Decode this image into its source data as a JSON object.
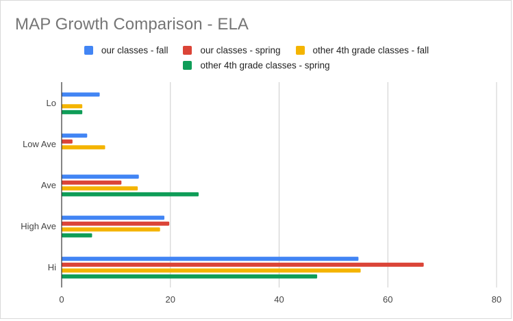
{
  "chart_data": {
    "type": "bar",
    "orientation": "horizontal",
    "title": "MAP Growth Comparison - ELA",
    "categories": [
      "Lo",
      "Low Ave",
      "Ave",
      "High Ave",
      "Hi"
    ],
    "series": [
      {
        "name": "our classes - fall",
        "color": "#4285f4",
        "values": [
          7,
          4.7,
          14.2,
          18.9,
          54.6
        ]
      },
      {
        "name": "our classes - spring",
        "color": "#db4437",
        "values": [
          0,
          2,
          11,
          19.8,
          66.6
        ]
      },
      {
        "name": "other 4th grade classes - fall",
        "color": "#f4b400",
        "values": [
          3.8,
          8,
          14,
          18.1,
          55
        ]
      },
      {
        "name": "other 4th grade classes - spring",
        "color": "#0f9d58",
        "values": [
          3.8,
          0,
          25.2,
          5.6,
          47
        ]
      }
    ],
    "xlim": [
      0,
      80
    ],
    "xticks": [
      0,
      20,
      40,
      60,
      80
    ],
    "grid": true,
    "legend_position": "top"
  }
}
